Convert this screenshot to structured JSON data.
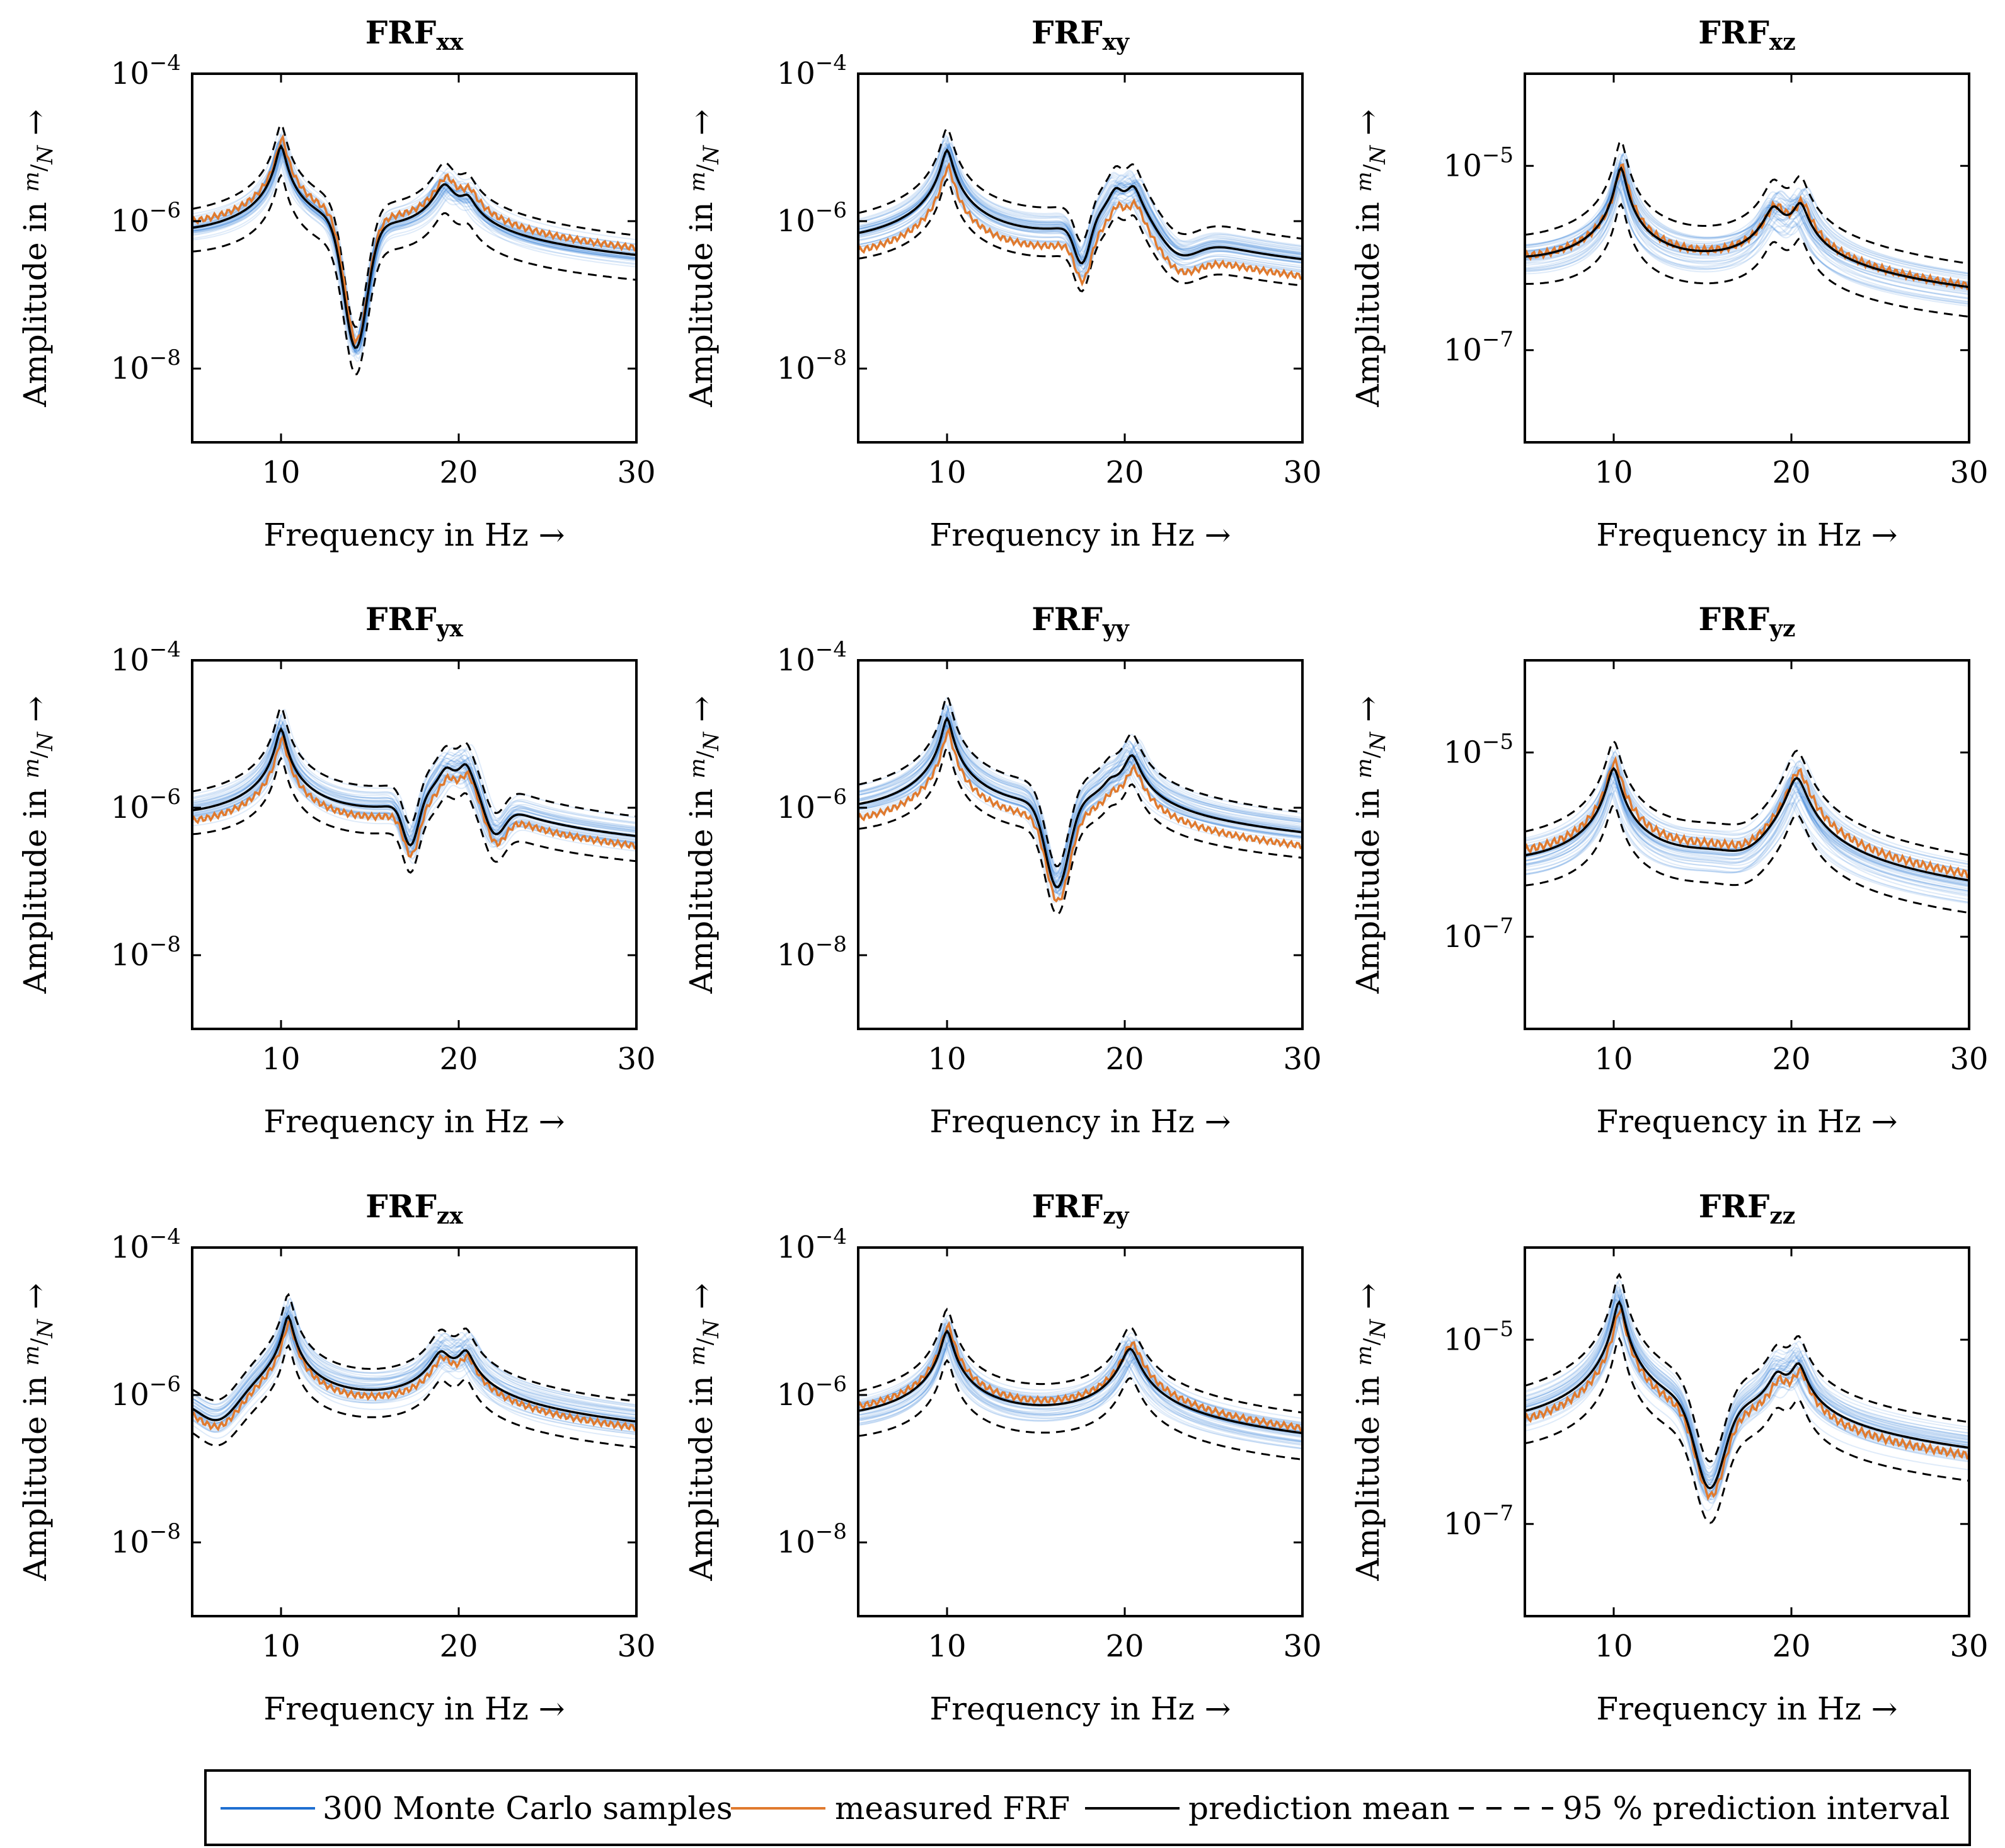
{
  "chart_data": {
    "type": "line",
    "layout": "3x3 grid of frequency response function panels",
    "x_label": "Frequency in Hz",
    "y_label_prefix": "Amplitude in",
    "y_unit_num": "m",
    "y_unit_den": "N",
    "arrow": "→",
    "x_ticks": [
      10,
      20,
      30
    ],
    "xlim": [
      5,
      30
    ],
    "legend": {
      "position": "bottom-center",
      "entries": [
        {
          "label": "300 Monte Carlo samples",
          "color": "#1f6fd1",
          "style": "solid"
        },
        {
          "label": "measured FRF",
          "color": "#e07a2e",
          "style": "solid"
        },
        {
          "label": "prediction mean",
          "color": "#000000",
          "style": "solid"
        },
        {
          "label": "95 % prediction interval",
          "color": "#000000",
          "style": "dashed"
        }
      ]
    },
    "panels": [
      {
        "title": "FRF",
        "sub": "xx",
        "ylim_exp": [
          -9,
          -4
        ],
        "y_ticks_exp": [
          -8,
          -6,
          -4
        ],
        "peaks": [
          {
            "f": 10.0,
            "a": -5.0,
            "w": 0.22
          },
          {
            "f": 19.2,
            "a": -5.6,
            "w": 0.45
          },
          {
            "f": 20.5,
            "a": -5.95,
            "w": 0.35
          }
        ],
        "notches": [
          {
            "f": 14.2,
            "d": 1.7,
            "w": 0.9
          }
        ],
        "base": -6.75,
        "measured_offset": 0.08,
        "mean_points": null
      },
      {
        "title": "FRF",
        "sub": "xy",
        "ylim_exp": [
          -9,
          -4
        ],
        "y_ticks_exp": [
          -8,
          -6,
          -4
        ],
        "peaks": [
          {
            "f": 10.0,
            "a": -5.05,
            "w": 0.25
          },
          {
            "f": 19.5,
            "a": -5.75,
            "w": 0.35
          },
          {
            "f": 20.5,
            "a": -5.65,
            "w": 0.35
          }
        ],
        "notches": [
          {
            "f": 17.6,
            "d": 0.55,
            "w": 0.6
          },
          {
            "f": 23.0,
            "d": 0.3,
            "w": 1.5
          }
        ],
        "base": -7.0,
        "measured_offset": -0.25,
        "mean_points": null
      },
      {
        "title": "FRF",
        "sub": "xz",
        "ylim_exp": [
          -8,
          -4
        ],
        "y_ticks_exp": [
          -7,
          -5
        ],
        "peaks": [
          {
            "f": 10.4,
            "a": -5.05,
            "w": 0.25
          },
          {
            "f": 19.0,
            "a": -5.6,
            "w": 0.45
          },
          {
            "f": 20.5,
            "a": -5.55,
            "w": 0.35
          }
        ],
        "notches": [],
        "base": -6.5,
        "measured_offset": 0.0,
        "mean_points": null
      },
      {
        "title": "FRF",
        "sub": "yx",
        "ylim_exp": [
          -9,
          -4
        ],
        "y_ticks_exp": [
          -8,
          -6,
          -4
        ],
        "peaks": [
          {
            "f": 10.0,
            "a": -4.95,
            "w": 0.22
          },
          {
            "f": 19.3,
            "a": -5.65,
            "w": 0.4
          },
          {
            "f": 20.4,
            "a": -5.55,
            "w": 0.35
          }
        ],
        "notches": [
          {
            "f": 17.3,
            "d": 0.6,
            "w": 0.6
          },
          {
            "f": 22.0,
            "d": 0.45,
            "w": 0.8
          }
        ],
        "base": -6.7,
        "measured_offset": -0.15,
        "mean_points": null
      },
      {
        "title": "FRF",
        "sub": "yy",
        "ylim_exp": [
          -9,
          -4
        ],
        "y_ticks_exp": [
          -8,
          -6,
          -4
        ],
        "peaks": [
          {
            "f": 10.0,
            "a": -4.8,
            "w": 0.22
          },
          {
            "f": 19.2,
            "a": -6.1,
            "w": 0.35
          },
          {
            "f": 20.4,
            "a": -5.35,
            "w": 0.35
          }
        ],
        "notches": [
          {
            "f": 16.2,
            "d": 1.15,
            "w": 0.9
          }
        ],
        "base": -6.7,
        "measured_offset": -0.2,
        "mean_points": null
      },
      {
        "title": "FRF",
        "sub": "yz",
        "ylim_exp": [
          -8,
          -4
        ],
        "y_ticks_exp": [
          -7,
          -5
        ],
        "peaks": [
          {
            "f": 10.0,
            "a": -5.2,
            "w": 0.3
          },
          {
            "f": 20.3,
            "a": -5.3,
            "w": 0.45
          }
        ],
        "notches": [
          {
            "f": 17.5,
            "d": 0.1,
            "w": 1.5
          }
        ],
        "base": -6.8,
        "measured_offset": 0.05,
        "mean_points": null
      },
      {
        "title": "FRF",
        "sub": "zx",
        "ylim_exp": [
          -9,
          -4
        ],
        "y_ticks_exp": [
          -8,
          -6,
          -4
        ],
        "peaks": [
          {
            "f": 10.4,
            "a": -4.95,
            "w": 0.22
          },
          {
            "f": 19.0,
            "a": -5.55,
            "w": 0.45
          },
          {
            "f": 20.4,
            "a": -5.55,
            "w": 0.35
          }
        ],
        "notches": [
          {
            "f": 6.5,
            "d": 0.35,
            "w": 1.5
          }
        ],
        "base": -6.75,
        "measured_offset": -0.1,
        "mean_points": null
      },
      {
        "title": "FRF",
        "sub": "zy",
        "ylim_exp": [
          -9,
          -4
        ],
        "y_ticks_exp": [
          -8,
          -6,
          -4
        ],
        "peaks": [
          {
            "f": 10.0,
            "a": -5.15,
            "w": 0.25
          },
          {
            "f": 20.3,
            "a": -5.4,
            "w": 0.4
          }
        ],
        "notches": [],
        "base": -7.0,
        "measured_offset": 0.05,
        "mean_points": null
      },
      {
        "title": "FRF",
        "sub": "zz",
        "ylim_exp": [
          -8,
          -4
        ],
        "y_ticks_exp": [
          -7,
          -5
        ],
        "peaks": [
          {
            "f": 10.3,
            "a": -4.6,
            "w": 0.25
          },
          {
            "f": 19.2,
            "a": -5.6,
            "w": 0.4
          },
          {
            "f": 20.4,
            "a": -5.4,
            "w": 0.35
          }
        ],
        "notches": [
          {
            "f": 15.4,
            "d": 0.9,
            "w": 1.1
          }
        ],
        "base": -6.65,
        "measured_offset": -0.1,
        "mean_points": null
      }
    ]
  }
}
